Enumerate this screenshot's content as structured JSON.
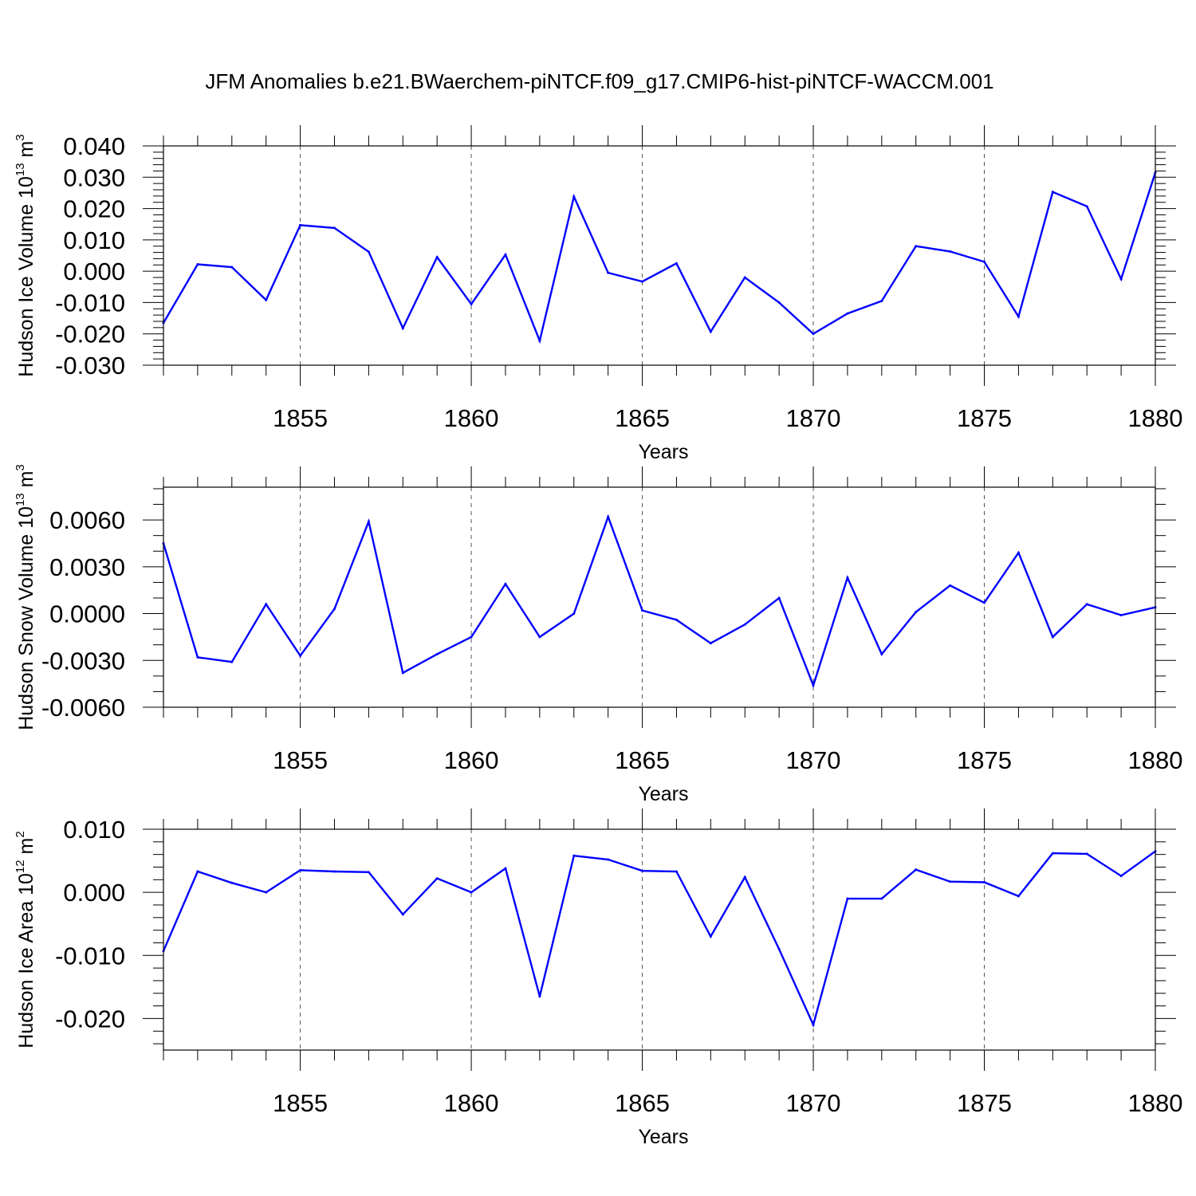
{
  "title": "JFM Anomalies b.e21.BWaerchem-piNTCF.f09_g17.CMIP6-hist-piNTCF-WACCM.001",
  "chart_data": [
    {
      "type": "line",
      "name": "ice-volume",
      "ylabel": {
        "base": "Hudson Ice Volume 10",
        "exp": "13",
        "unit": " m",
        "unitexp": "3"
      },
      "xlabel": "Years",
      "xlim": [
        1851,
        1880
      ],
      "ylim": [
        -0.03,
        0.04
      ],
      "yticks": [
        -0.03,
        -0.02,
        -0.01,
        0.0,
        0.01,
        0.02,
        0.03,
        0.04
      ],
      "ytick_labels": [
        "-0.030",
        "-0.020",
        "-0.010",
        "0.000",
        "0.010",
        "0.020",
        "0.030",
        "0.040"
      ],
      "yminor_step": 0.002,
      "xticks": [
        1855,
        1860,
        1865,
        1870,
        1875,
        1880
      ],
      "xtick_labels": [
        "1855",
        "1860",
        "1865",
        "1870",
        "1875",
        "1880"
      ],
      "x": [
        1851,
        1852,
        1853,
        1854,
        1855,
        1856,
        1857,
        1858,
        1859,
        1860,
        1861,
        1862,
        1863,
        1864,
        1865,
        1866,
        1867,
        1868,
        1869,
        1870,
        1871,
        1872,
        1873,
        1874,
        1875,
        1876,
        1877,
        1878,
        1879,
        1880
      ],
      "series": [
        {
          "name": "Hudson Ice Volume",
          "color": "#0000ff",
          "values": [
            -0.0165,
            0.0022,
            0.0013,
            -0.0092,
            0.0147,
            0.0138,
            0.0062,
            -0.0182,
            0.0045,
            -0.0105,
            0.0053,
            -0.0222,
            0.0238,
            -0.0005,
            -0.0033,
            0.0025,
            -0.0193,
            -0.002,
            -0.01,
            -0.02,
            -0.0135,
            -0.0095,
            0.008,
            0.0063,
            0.003,
            -0.0145,
            0.0253,
            0.0207,
            -0.0025,
            0.0315
          ]
        }
      ]
    },
    {
      "type": "line",
      "name": "snow-volume",
      "ylabel": {
        "base": "Hudson Snow Volume 10",
        "exp": "13",
        "unit": " m",
        "unitexp": "3"
      },
      "xlabel": "Years",
      "xlim": [
        1851,
        1880
      ],
      "ylim": [
        -0.006,
        0.0081
      ],
      "yticks": [
        -0.006,
        -0.003,
        0.0,
        0.003,
        0.006
      ],
      "ytick_labels": [
        "-0.0060",
        "-0.0030",
        "0.0000",
        "0.0030",
        "0.0060"
      ],
      "yminor_step": 0.001,
      "xticks": [
        1855,
        1860,
        1865,
        1870,
        1875,
        1880
      ],
      "xtick_labels": [
        "1855",
        "1860",
        "1865",
        "1870",
        "1875",
        "1880"
      ],
      "x": [
        1851,
        1852,
        1853,
        1854,
        1855,
        1856,
        1857,
        1858,
        1859,
        1860,
        1861,
        1862,
        1863,
        1864,
        1865,
        1866,
        1867,
        1868,
        1869,
        1870,
        1871,
        1872,
        1873,
        1874,
        1875,
        1876,
        1877,
        1878,
        1879,
        1880
      ],
      "series": [
        {
          "name": "Hudson Snow Volume",
          "color": "#0000ff",
          "values": [
            0.0045,
            -0.0028,
            -0.0031,
            0.0006,
            -0.0027,
            0.0003,
            0.0059,
            -0.0038,
            -0.0026,
            -0.0015,
            0.0019,
            -0.0015,
            0.0,
            0.0062,
            0.0002,
            -0.0004,
            -0.0019,
            -0.0007,
            0.001,
            -0.0046,
            0.0023,
            -0.0026,
            0.0001,
            0.0018,
            0.0007,
            0.0039,
            -0.0015,
            0.0006,
            -0.0001,
            0.0004
          ]
        }
      ]
    },
    {
      "type": "line",
      "name": "ice-area",
      "ylabel": {
        "base": "Hudson Ice Area 10",
        "exp": "12",
        "unit": " m",
        "unitexp": "2"
      },
      "xlabel": "Years",
      "xlim": [
        1851,
        1880
      ],
      "ylim": [
        -0.025,
        0.01
      ],
      "yticks": [
        -0.02,
        -0.01,
        0.0,
        0.01
      ],
      "ytick_labels": [
        "-0.020",
        "-0.010",
        "0.000",
        "0.010"
      ],
      "yminor_step": 0.002,
      "xticks": [
        1855,
        1860,
        1865,
        1870,
        1875,
        1880
      ],
      "xtick_labels": [
        "1855",
        "1860",
        "1865",
        "1870",
        "1875",
        "1880"
      ],
      "x": [
        1851,
        1852,
        1853,
        1854,
        1855,
        1856,
        1857,
        1858,
        1859,
        1860,
        1861,
        1862,
        1863,
        1864,
        1865,
        1866,
        1867,
        1868,
        1869,
        1870,
        1871,
        1872,
        1873,
        1874,
        1875,
        1876,
        1877,
        1878,
        1879,
        1880
      ],
      "series": [
        {
          "name": "Hudson Ice Area",
          "color": "#0000ff",
          "values": [
            -0.0093,
            0.0033,
            0.0015,
            0.0,
            0.0035,
            0.0033,
            0.0032,
            -0.0035,
            0.0022,
            0.0,
            0.0038,
            -0.0165,
            0.0058,
            0.0052,
            0.0034,
            0.0033,
            -0.007,
            0.0024,
            -0.009,
            -0.021,
            -0.001,
            -0.001,
            0.0036,
            0.0017,
            0.0016,
            -0.0006,
            0.0062,
            0.0061,
            0.0026,
            0.0065
          ]
        }
      ]
    }
  ]
}
